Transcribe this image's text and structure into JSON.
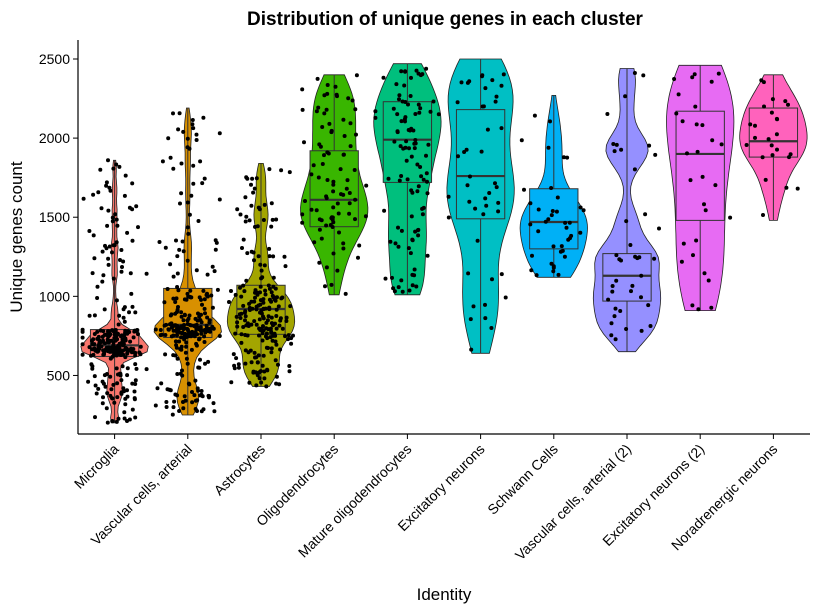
{
  "chart_data": {
    "type": "violin",
    "title": "Distribution of unique genes in each cluster",
    "xlabel": "Identity",
    "ylabel": "Unique genes count",
    "ylim": [
      130,
      2620
    ],
    "yticks": [
      500,
      1000,
      1500,
      2000,
      2500
    ],
    "grid": false,
    "legend": "none",
    "categories": [
      "Microglia",
      "Vascular cells, arterial",
      "Astrocytes",
      "Oligodendrocytes",
      "Mature oligodendrocytes",
      "Excitatory neurons",
      "Schwann Cells",
      "Vascular cells, arterial (2)",
      "Excitatory neurons (2)",
      "Noradrenergic neurons"
    ],
    "series": [
      {
        "color": "#F8766D",
        "min": 200,
        "q1": 620,
        "median": 690,
        "q3": 790,
        "max": 1860,
        "n_points": 300
      },
      {
        "color": "#D89000",
        "min": 250,
        "q1": 740,
        "median": 820,
        "q3": 1050,
        "max": 2190,
        "n_points": 260
      },
      {
        "color": "#A3A500",
        "min": 430,
        "q1": 760,
        "median": 920,
        "q3": 1070,
        "max": 1840,
        "n_points": 220
      },
      {
        "color": "#39B600",
        "min": 1010,
        "q1": 1440,
        "median": 1610,
        "q3": 1920,
        "max": 2400,
        "n_points": 90
      },
      {
        "color": "#00BF7D",
        "min": 1010,
        "q1": 1720,
        "median": 1990,
        "q3": 2230,
        "max": 2470,
        "n_points": 100
      },
      {
        "color": "#00BFC4",
        "min": 640,
        "q1": 1490,
        "median": 1760,
        "q3": 2180,
        "max": 2500,
        "n_points": 45
      },
      {
        "color": "#00B0F6",
        "min": 1120,
        "q1": 1300,
        "median": 1470,
        "q3": 1680,
        "max": 2270,
        "n_points": 40
      },
      {
        "color": "#9590FF",
        "min": 650,
        "q1": 970,
        "median": 1130,
        "q3": 1270,
        "max": 2440,
        "n_points": 40
      },
      {
        "color": "#E76BF3",
        "min": 910,
        "q1": 1480,
        "median": 1900,
        "q3": 2170,
        "max": 2460,
        "n_points": 30
      },
      {
        "color": "#FF62BC",
        "min": 1480,
        "q1": 1880,
        "median": 1980,
        "q3": 2190,
        "max": 2400,
        "n_points": 25
      }
    ]
  }
}
